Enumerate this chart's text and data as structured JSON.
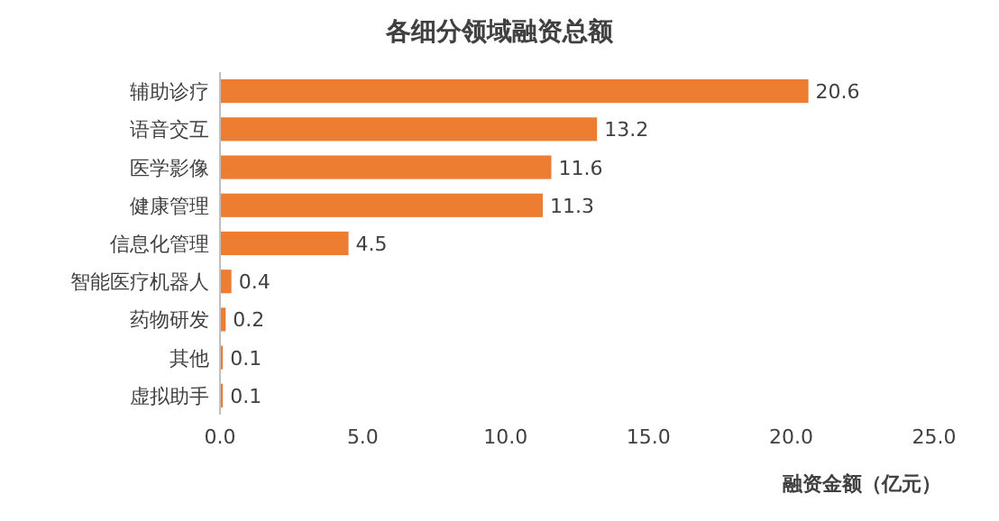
{
  "chart_data": {
    "type": "bar",
    "orientation": "horizontal",
    "title": "各细分领域融资总额",
    "xlabel": "融资金额（亿元）",
    "categories": [
      "辅助诊疗",
      "语音交互",
      "医学影像",
      "健康管理",
      "信息化管理",
      "智能医疗机器人",
      "药物研发",
      "其他",
      "虚拟助手"
    ],
    "values": [
      20.6,
      13.2,
      11.6,
      11.3,
      4.5,
      0.4,
      0.2,
      0.1,
      0.1
    ],
    "color": "#ed7d31",
    "data_labels": true,
    "grid": false,
    "xlim": [
      0,
      25
    ],
    "xticks": [
      {
        "value": 0,
        "label": "0.0"
      },
      {
        "value": 5,
        "label": "5.0"
      },
      {
        "value": 10,
        "label": "10.0"
      },
      {
        "value": 15,
        "label": "15.0"
      },
      {
        "value": 20,
        "label": "20.0"
      },
      {
        "value": 25,
        "label": "25.0"
      }
    ]
  }
}
